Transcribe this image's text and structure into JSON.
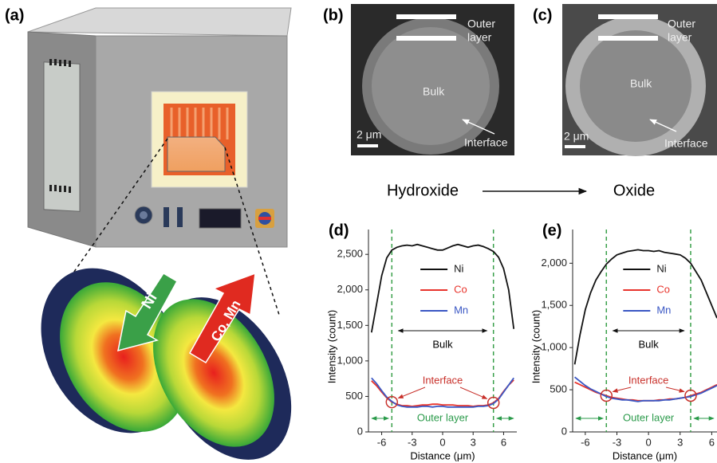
{
  "panels": {
    "a": "(a)",
    "b": "(b)",
    "c": "(c)",
    "d": "(d)",
    "e": "(e)"
  },
  "illustration": {
    "ni_arrow": "Ni",
    "co_mn_arrow": "Co, Mn"
  },
  "sem": [
    {
      "outer": [
        "Outer",
        "layer"
      ],
      "bulk": "Bulk",
      "interface": "Interface",
      "scale": "2 μm"
    },
    {
      "outer": [
        "Outer",
        "layer"
      ],
      "bulk": "Bulk",
      "interface": "Interface",
      "scale": "2 μm"
    }
  ],
  "transition": {
    "from": "Hydroxide",
    "to": "Oxide"
  },
  "chart_data": [
    {
      "type": "line",
      "xlabel": "Distance (μm)",
      "ylabel": "Intensity (count)",
      "x": [
        -7,
        -6.5,
        -6,
        -5.5,
        -5,
        -4.5,
        -4,
        -3.5,
        -3,
        -2.5,
        -2,
        -1.5,
        -1,
        -0.5,
        0,
        0.5,
        1,
        1.5,
        2,
        2.5,
        3,
        3.5,
        4,
        4.5,
        5,
        5.5,
        6,
        6.5,
        7
      ],
      "series": [
        {
          "name": "Ni",
          "color": "#111111",
          "values": [
            1400,
            1800,
            2200,
            2450,
            2560,
            2600,
            2620,
            2630,
            2620,
            2640,
            2620,
            2600,
            2580,
            2560,
            2560,
            2590,
            2620,
            2640,
            2620,
            2600,
            2620,
            2630,
            2610,
            2580,
            2540,
            2460,
            2300,
            2000,
            1450
          ]
        },
        {
          "name": "Co",
          "color": "#e8342c",
          "values": [
            720,
            650,
            560,
            480,
            420,
            390,
            370,
            370,
            360,
            370,
            380,
            380,
            390,
            390,
            380,
            380,
            380,
            370,
            370,
            370,
            360,
            370,
            370,
            380,
            410,
            470,
            570,
            660,
            730
          ]
        },
        {
          "name": "Mn",
          "color": "#3a57c4",
          "values": [
            760,
            680,
            580,
            490,
            430,
            380,
            360,
            350,
            350,
            350,
            360,
            360,
            350,
            360,
            360,
            350,
            350,
            350,
            350,
            350,
            350,
            360,
            360,
            370,
            400,
            460,
            560,
            660,
            760
          ]
        }
      ],
      "xlim": [
        -7.3,
        7.3
      ],
      "ylim": [
        0,
        2850
      ],
      "xticks": [
        -6,
        -3,
        0,
        3,
        6
      ],
      "yticks": [
        0,
        500,
        {
          "value": 1000,
          "label": "1,000"
        },
        {
          "value": 1500,
          "label": "1,500"
        },
        {
          "value": 2000,
          "label": "2,000"
        },
        {
          "value": 2500,
          "label": "2,500"
        }
      ],
      "interface_lines": [
        -5,
        5
      ],
      "annotations": {
        "bulk": "Bulk",
        "interface": "Interface",
        "outer_layer": "Outer layer"
      }
    },
    {
      "type": "line",
      "xlabel": "Distance (μm)",
      "ylabel": "Intensity (count)",
      "x": [
        -7,
        -6.5,
        -6,
        -5.5,
        -5,
        -4.5,
        -4,
        -3.5,
        -3,
        -2.5,
        -2,
        -1.5,
        -1,
        -0.5,
        0,
        0.5,
        1,
        1.5,
        2,
        2.5,
        3,
        3.5,
        4,
        4.5,
        5,
        5.5,
        6,
        6.5
      ],
      "series": [
        {
          "name": "Ni",
          "color": "#111111",
          "values": [
            800,
            1150,
            1450,
            1650,
            1800,
            1900,
            1990,
            2050,
            2100,
            2120,
            2140,
            2150,
            2160,
            2150,
            2150,
            2140,
            2150,
            2130,
            2120,
            2110,
            2100,
            2060,
            2000,
            1900,
            1800,
            1650,
            1500,
            1350
          ]
        },
        {
          "name": "Co",
          "color": "#e8342c",
          "values": [
            590,
            560,
            530,
            500,
            470,
            450,
            430,
            410,
            400,
            390,
            380,
            380,
            370,
            370,
            370,
            370,
            380,
            380,
            390,
            390,
            400,
            410,
            430,
            450,
            470,
            500,
            530,
            560
          ]
        },
        {
          "name": "Mn",
          "color": "#3a57c4",
          "values": [
            650,
            600,
            550,
            510,
            480,
            450,
            420,
            400,
            390,
            380,
            380,
            370,
            360,
            370,
            370,
            370,
            370,
            380,
            380,
            390,
            400,
            410,
            420,
            440,
            460,
            490,
            520,
            550
          ]
        }
      ],
      "xlim": [
        -7.2,
        6.5
      ],
      "ylim": [
        0,
        2400
      ],
      "xticks": [
        -6,
        -3,
        0,
        3,
        6
      ],
      "yticks": [
        0,
        500,
        {
          "value": 1000,
          "label": "1,000"
        },
        {
          "value": 1500,
          "label": "1,500"
        },
        {
          "value": 2000,
          "label": "2,000"
        }
      ],
      "interface_lines": [
        -4,
        4
      ],
      "annotations": {
        "bulk": "Bulk",
        "interface": "Interface",
        "outer_layer": "Outer layer"
      }
    }
  ]
}
